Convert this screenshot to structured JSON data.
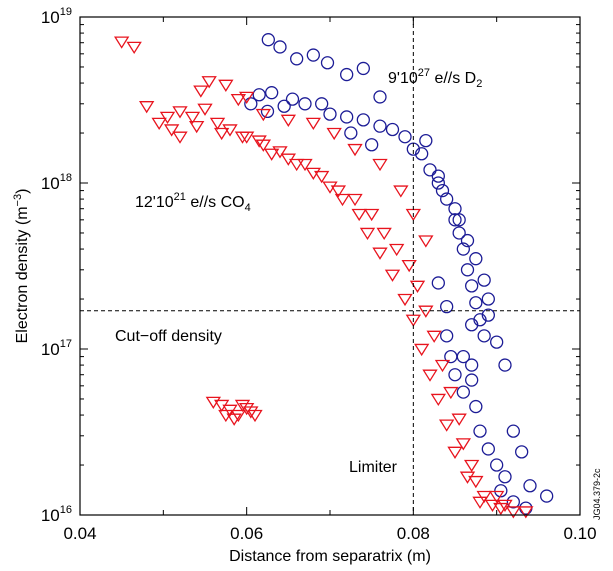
{
  "chart_data": {
    "type": "scatter",
    "xlabel": "Distance from separatrix (m)",
    "ylabel": {
      "main": "Electron density (m",
      "exp": "−3",
      "close": ")"
    },
    "x_ticks": [
      "0.04",
      "0.06",
      "0.08",
      "0.10"
    ],
    "x_tick_values": [
      0.04,
      0.06,
      0.08,
      0.1
    ],
    "y_ticks": [
      {
        "base": "10",
        "exp": "16",
        "value": 1e+16
      },
      {
        "base": "10",
        "exp": "17",
        "value": 1e+17
      },
      {
        "base": "10",
        "exp": "18",
        "value": 1e+18
      },
      {
        "base": "10",
        "exp": "19",
        "value": 1e+19
      }
    ],
    "xlim": [
      0.04,
      0.1
    ],
    "ylim": [
      1e+16,
      1e+19
    ],
    "yscale": "log",
    "grid": false,
    "reference_lines": {
      "cutoff_density": 1.7e+17,
      "limiter": 0.08
    },
    "annotations": {
      "d2": {
        "pre": "9'10",
        "exp": "27",
        "mid": " e//s D",
        "sub": "2"
      },
      "co4": {
        "pre": "12'10",
        "exp": "21",
        "mid": " e//s CO",
        "sub": "4"
      },
      "cutoff": "Cut−off density",
      "limiter": "Limiter",
      "figure_id": "JG04.379-2c"
    },
    "series": [
      {
        "marker": "circle",
        "color": "#1c1c96",
        "points": [
          [
            0.0626,
            7.3e+18
          ],
          [
            0.064,
            6.6e+18
          ],
          [
            0.066,
            5.6e+18
          ],
          [
            0.068,
            5.9e+18
          ],
          [
            0.0697,
            5.3e+18
          ],
          [
            0.072,
            4.5e+18
          ],
          [
            0.074,
            4.9e+18
          ],
          [
            0.076,
            3.3e+18
          ],
          [
            0.0725,
            2e+18
          ],
          [
            0.075,
            1.7e+18
          ],
          [
            0.0615,
            3.4e+18
          ],
          [
            0.0605,
            3e+18
          ],
          [
            0.0625,
            2.7e+18
          ],
          [
            0.0645,
            2.9e+18
          ],
          [
            0.063,
            3.5e+18
          ],
          [
            0.0655,
            3.2e+18
          ],
          [
            0.067,
            3e+18
          ],
          [
            0.069,
            3e+18
          ],
          [
            0.07,
            2.6e+18
          ],
          [
            0.072,
            2.5e+18
          ],
          [
            0.074,
            2.4e+18
          ],
          [
            0.076,
            2.2e+18
          ],
          [
            0.0775,
            2.1e+18
          ],
          [
            0.079,
            1.9e+18
          ],
          [
            0.08,
            1.6e+18
          ],
          [
            0.081,
            1.5e+18
          ],
          [
            0.082,
            1.2e+18
          ],
          [
            0.083,
            1e+18
          ],
          [
            0.084,
            8e+17
          ],
          [
            0.085,
            6e+17
          ],
          [
            0.0855,
            5e+17
          ],
          [
            0.086,
            4e+17
          ],
          [
            0.0865,
            3e+17
          ],
          [
            0.087,
            2.4e+17
          ],
          [
            0.0875,
            1.9e+17
          ],
          [
            0.088,
            1.5e+17
          ],
          [
            0.0885,
            1.2e+17
          ],
          [
            0.089,
            2e+17
          ],
          [
            0.086,
            9e+16
          ],
          [
            0.087,
            6.5e+16
          ],
          [
            0.0875,
            4.5e+16
          ],
          [
            0.088,
            3.2e+16
          ],
          [
            0.089,
            2.5e+16
          ],
          [
            0.09,
            2e+16
          ],
          [
            0.091,
            1.7e+16
          ],
          [
            0.0905,
            1.4e+16
          ],
          [
            0.092,
            1.2e+16
          ],
          [
            0.093,
            2.4e+16
          ],
          [
            0.092,
            3.2e+16
          ],
          [
            0.087,
            8e+16
          ],
          [
            0.086,
            5.5e+16
          ],
          [
            0.084,
            1.2e+17
          ],
          [
            0.0845,
            9e+16
          ],
          [
            0.085,
            7e+16
          ],
          [
            0.083,
            2.5e+17
          ],
          [
            0.084,
            1.8e+17
          ],
          [
            0.089,
            1.6e+17
          ],
          [
            0.09,
            1.1e+17
          ],
          [
            0.091,
            8e+16
          ],
          [
            0.087,
            1.4e+17
          ],
          [
            0.096,
            1.3e+16
          ],
          [
            0.094,
            1.5e+16
          ],
          [
            0.0935,
            1.1e+16
          ],
          [
            0.0815,
            1.8e+18
          ],
          [
            0.083,
            1.1e+18
          ],
          [
            0.0835,
            9e+17
          ],
          [
            0.085,
            7e+17
          ],
          [
            0.0855,
            6e+17
          ],
          [
            0.0865,
            4.5e+17
          ],
          [
            0.0875,
            3.5e+17
          ],
          [
            0.0885,
            2.6e+17
          ]
        ]
      },
      {
        "marker": "triangle-down",
        "color": "#e8141e",
        "points": [
          [
            0.045,
            7.1e+18
          ],
          [
            0.0465,
            6.6e+18
          ],
          [
            0.048,
            2.9e+18
          ],
          [
            0.0495,
            2.3e+18
          ],
          [
            0.051,
            2.1e+18
          ],
          [
            0.052,
            1.9e+18
          ],
          [
            0.0535,
            2.5e+18
          ],
          [
            0.055,
            2.8e+18
          ],
          [
            0.0565,
            2.3e+18
          ],
          [
            0.058,
            2.1e+18
          ],
          [
            0.06,
            1.9e+18
          ],
          [
            0.0615,
            1.8e+18
          ],
          [
            0.063,
            1.5e+18
          ],
          [
            0.065,
            1.4e+18
          ],
          [
            0.067,
            1.3e+18
          ],
          [
            0.069,
            1.1e+18
          ],
          [
            0.071,
            9e+17
          ],
          [
            0.073,
            8e+17
          ],
          [
            0.075,
            6.5e+17
          ],
          [
            0.0765,
            5e+17
          ],
          [
            0.078,
            4e+17
          ],
          [
            0.0795,
            3.2e+17
          ],
          [
            0.0805,
            2.4e+17
          ],
          [
            0.0815,
            1.7e+17
          ],
          [
            0.0825,
            1.2e+17
          ],
          [
            0.0835,
            8e+16
          ],
          [
            0.0845,
            5.5e+16
          ],
          [
            0.0855,
            3.8e+16
          ],
          [
            0.086,
            2.7e+16
          ],
          [
            0.087,
            2e+16
          ],
          [
            0.0875,
            1.6e+16
          ],
          [
            0.0885,
            1.3e+16
          ],
          [
            0.0895,
            1.15e+16
          ],
          [
            0.0905,
            1.1e+16
          ],
          [
            0.092,
            1.05e+16
          ],
          [
            0.0935,
            1.05e+16
          ],
          [
            0.0555,
            4.1e+18
          ],
          [
            0.0575,
            3.9e+18
          ],
          [
            0.0545,
            3.6e+18
          ],
          [
            0.059,
            3.2e+18
          ],
          [
            0.06,
            3.3e+18
          ],
          [
            0.062,
            2.6e+18
          ],
          [
            0.065,
            2.4e+18
          ],
          [
            0.068,
            2.3e+18
          ],
          [
            0.0705,
            2e+18
          ],
          [
            0.073,
            1.6e+18
          ],
          [
            0.076,
            1.3e+18
          ],
          [
            0.0785,
            9e+17
          ],
          [
            0.08,
            6.5e+17
          ],
          [
            0.0815,
            4.5e+17
          ],
          [
            0.057,
            4.6e+16
          ],
          [
            0.058,
            4.3e+16
          ],
          [
            0.059,
            4e+16
          ],
          [
            0.06,
            4.4e+16
          ],
          [
            0.0605,
            4.2e+16
          ],
          [
            0.0575,
            4e+16
          ],
          [
            0.0595,
            4.6e+16
          ],
          [
            0.0585,
            3.8e+16
          ],
          [
            0.056,
            4.8e+16
          ],
          [
            0.061,
            4e+16
          ],
          [
            0.088,
            1.2e+16
          ],
          [
            0.09,
            1.3e+16
          ],
          [
            0.091,
            1.15e+16
          ],
          [
            0.0865,
            1.7e+16
          ],
          [
            0.085,
            2.4e+16
          ],
          [
            0.084,
            3.5e+16
          ],
          [
            0.083,
            5e+16
          ],
          [
            0.082,
            7e+16
          ],
          [
            0.081,
            1e+17
          ],
          [
            0.08,
            1.5e+17
          ],
          [
            0.079,
            2e+17
          ],
          [
            0.0775,
            2.8e+17
          ],
          [
            0.076,
            3.8e+17
          ],
          [
            0.0745,
            5e+17
          ],
          [
            0.0735,
            6.5e+17
          ],
          [
            0.0715,
            8e+17
          ],
          [
            0.07,
            9.5e+17
          ],
          [
            0.068,
            1.15e+18
          ],
          [
            0.066,
            1.3e+18
          ],
          [
            0.064,
            1.55e+18
          ],
          [
            0.062,
            1.7e+18
          ],
          [
            0.0595,
            1.9e+18
          ],
          [
            0.057,
            2e+18
          ],
          [
            0.054,
            2.2e+18
          ],
          [
            0.052,
            2.7e+18
          ],
          [
            0.0505,
            2.5e+18
          ]
        ]
      }
    ]
  }
}
